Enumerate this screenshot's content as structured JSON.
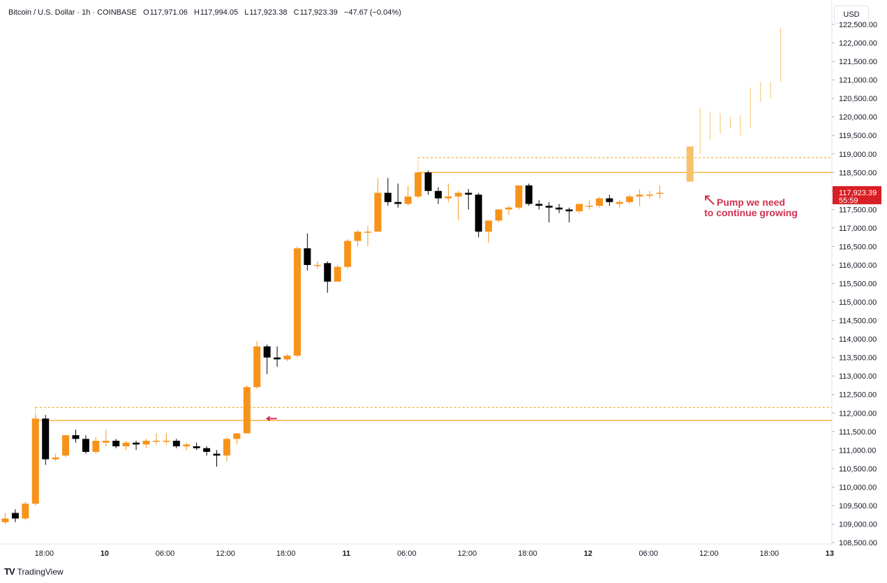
{
  "header": {
    "symbol": "Bitcoin / U.S. Dollar · 1h · COINBASE",
    "o_label": "O",
    "o": "117,971.06",
    "h_label": "H",
    "h": "117,994.05",
    "l_label": "L",
    "l": "117,923.38",
    "c_label": "C",
    "c": "117,923.39",
    "change": "−47.67 (−0.04%)"
  },
  "currency": "USD",
  "footer": {
    "logo": "TV",
    "brand": "TradingView"
  },
  "colors": {
    "up": "#f7931a",
    "down": "#000000",
    "projection": "#f5c26b",
    "level": "#f5a623",
    "annotation": "#d0314f",
    "price_tag": "#d91f26"
  },
  "chart_data": {
    "type": "candlestick",
    "timeframe": "1h",
    "ylim": [
      108500,
      122500
    ],
    "y_ticks": [
      108500,
      109000,
      109500,
      110000,
      110500,
      111000,
      111500,
      112000,
      112500,
      113000,
      113500,
      114000,
      114500,
      115000,
      115500,
      116000,
      116500,
      117000,
      117500,
      118000,
      118500,
      119000,
      119500,
      120000,
      120500,
      121000,
      121500,
      122000,
      122500
    ],
    "x_ticks": [
      {
        "label": "18:00",
        "i": 2,
        "bold": false
      },
      {
        "label": "10",
        "i": 8,
        "bold": true
      },
      {
        "label": "06:00",
        "i": 14,
        "bold": false
      },
      {
        "label": "12:00",
        "i": 20,
        "bold": false
      },
      {
        "label": "18:00",
        "i": 26,
        "bold": false
      },
      {
        "label": "11",
        "i": 32,
        "bold": true
      },
      {
        "label": "06:00",
        "i": 38,
        "bold": false
      },
      {
        "label": "12:00",
        "i": 44,
        "bold": false
      },
      {
        "label": "18:00",
        "i": 50,
        "bold": false
      },
      {
        "label": "12",
        "i": 56,
        "bold": true
      },
      {
        "label": "06:00",
        "i": 62,
        "bold": false
      },
      {
        "label": "12:00",
        "i": 68,
        "bold": false
      },
      {
        "label": "18:00",
        "i": 74,
        "bold": false
      },
      {
        "label": "13",
        "i": 80,
        "bold": true
      }
    ],
    "candles": [
      {
        "o": 109050,
        "h": 109300,
        "l": 109000,
        "c": 109150
      },
      {
        "o": 109300,
        "h": 109400,
        "l": 109050,
        "c": 109150
      },
      {
        "o": 109150,
        "h": 109600,
        "l": 109100,
        "c": 109550
      },
      {
        "o": 109550,
        "h": 111950,
        "l": 109500,
        "c": 111850
      },
      {
        "o": 111850,
        "h": 111950,
        "l": 110600,
        "c": 110750
      },
      {
        "o": 110750,
        "h": 110900,
        "l": 110700,
        "c": 110800
      },
      {
        "o": 110850,
        "h": 111400,
        "l": 110800,
        "c": 111400
      },
      {
        "o": 111400,
        "h": 111550,
        "l": 111200,
        "c": 111300
      },
      {
        "o": 111300,
        "h": 111400,
        "l": 110900,
        "c": 110950
      },
      {
        "o": 110950,
        "h": 111350,
        "l": 110900,
        "c": 111250
      },
      {
        "o": 111200,
        "h": 111550,
        "l": 111100,
        "c": 111250
      },
      {
        "o": 111250,
        "h": 111300,
        "l": 111050,
        "c": 111100
      },
      {
        "o": 111100,
        "h": 111250,
        "l": 111000,
        "c": 111200
      },
      {
        "o": 111200,
        "h": 111250,
        "l": 111000,
        "c": 111150
      },
      {
        "o": 111150,
        "h": 111300,
        "l": 111050,
        "c": 111250
      },
      {
        "o": 111250,
        "h": 111450,
        "l": 111150,
        "c": 111250
      },
      {
        "o": 111250,
        "h": 111450,
        "l": 111150,
        "c": 111250
      },
      {
        "o": 111250,
        "h": 111300,
        "l": 111050,
        "c": 111100
      },
      {
        "o": 111100,
        "h": 111200,
        "l": 111000,
        "c": 111150
      },
      {
        "o": 111100,
        "h": 111200,
        "l": 111000,
        "c": 111050
      },
      {
        "o": 111050,
        "h": 111100,
        "l": 110850,
        "c": 110950
      },
      {
        "o": 110900,
        "h": 111000,
        "l": 110550,
        "c": 110850
      },
      {
        "o": 110850,
        "h": 111350,
        "l": 110700,
        "c": 111300
      },
      {
        "o": 111300,
        "h": 111450,
        "l": 111150,
        "c": 111450
      },
      {
        "o": 111450,
        "h": 112750,
        "l": 111450,
        "c": 112700
      },
      {
        "o": 112700,
        "h": 113950,
        "l": 112650,
        "c": 113800
      },
      {
        "o": 113800,
        "h": 113850,
        "l": 113050,
        "c": 113500
      },
      {
        "o": 113500,
        "h": 113800,
        "l": 113250,
        "c": 113450
      },
      {
        "o": 113450,
        "h": 113600,
        "l": 113400,
        "c": 113550
      },
      {
        "o": 113550,
        "h": 116500,
        "l": 113500,
        "c": 116450
      },
      {
        "o": 116450,
        "h": 116850,
        "l": 115850,
        "c": 116000
      },
      {
        "o": 116000,
        "h": 116100,
        "l": 115900,
        "c": 116000
      },
      {
        "o": 116050,
        "h": 116100,
        "l": 115250,
        "c": 115550
      },
      {
        "o": 115550,
        "h": 116000,
        "l": 115550,
        "c": 115950
      },
      {
        "o": 115950,
        "h": 116700,
        "l": 115900,
        "c": 116650
      },
      {
        "o": 116650,
        "h": 116950,
        "l": 116500,
        "c": 116900
      },
      {
        "o": 116900,
        "h": 117050,
        "l": 116500,
        "c": 116900
      },
      {
        "o": 116900,
        "h": 118350,
        "l": 116900,
        "c": 117950
      },
      {
        "o": 117950,
        "h": 118350,
        "l": 117600,
        "c": 117700
      },
      {
        "o": 117700,
        "h": 118200,
        "l": 117550,
        "c": 117650
      },
      {
        "o": 117650,
        "h": 118150,
        "l": 117600,
        "c": 117850
      },
      {
        "o": 117850,
        "h": 118500,
        "l": 117800,
        "c": 118500
      },
      {
        "o": 118500,
        "h": 118550,
        "l": 117900,
        "c": 118000
      },
      {
        "o": 118000,
        "h": 118100,
        "l": 117650,
        "c": 117800
      },
      {
        "o": 117800,
        "h": 118200,
        "l": 117700,
        "c": 117850
      },
      {
        "o": 117850,
        "h": 118000,
        "l": 117200,
        "c": 117950
      },
      {
        "o": 117950,
        "h": 118050,
        "l": 117500,
        "c": 117900
      },
      {
        "o": 117900,
        "h": 117950,
        "l": 116750,
        "c": 116900
      },
      {
        "o": 116900,
        "h": 117200,
        "l": 116600,
        "c": 117200
      },
      {
        "o": 117200,
        "h": 117500,
        "l": 117150,
        "c": 117500
      },
      {
        "o": 117500,
        "h": 117600,
        "l": 117350,
        "c": 117550
      },
      {
        "o": 117550,
        "h": 118150,
        "l": 117500,
        "c": 118150
      },
      {
        "o": 118150,
        "h": 118200,
        "l": 117600,
        "c": 117650
      },
      {
        "o": 117650,
        "h": 117750,
        "l": 117500,
        "c": 117600
      },
      {
        "o": 117600,
        "h": 117700,
        "l": 117150,
        "c": 117550
      },
      {
        "o": 117550,
        "h": 117650,
        "l": 117400,
        "c": 117500
      },
      {
        "o": 117500,
        "h": 117550,
        "l": 117150,
        "c": 117450
      },
      {
        "o": 117450,
        "h": 117650,
        "l": 117400,
        "c": 117650
      },
      {
        "o": 117600,
        "h": 117750,
        "l": 117500,
        "c": 117600
      },
      {
        "o": 117600,
        "h": 117850,
        "l": 117550,
        "c": 117800
      },
      {
        "o": 117800,
        "h": 117900,
        "l": 117600,
        "c": 117700
      },
      {
        "o": 117650,
        "h": 117750,
        "l": 117550,
        "c": 117700
      },
      {
        "o": 117700,
        "h": 117900,
        "l": 117650,
        "c": 117850
      },
      {
        "o": 117850,
        "h": 118050,
        "l": 117600,
        "c": 117900
      },
      {
        "o": 117900,
        "h": 118000,
        "l": 117800,
        "c": 117900
      },
      {
        "o": 117950,
        "h": 118150,
        "l": 117800,
        "c": 117950
      }
    ],
    "projection_index_start": 68,
    "projection": [
      {
        "o": 118250,
        "h": 119200,
        "l": 118250,
        "c": 119200
      },
      {
        "o": 119000,
        "h": 120250,
        "l": 119000,
        "c": 120000
      },
      {
        "o": 119400,
        "h": 120150,
        "l": 119400,
        "c": 120050
      },
      {
        "o": 119550,
        "h": 120100,
        "l": 119550,
        "c": 119900
      },
      {
        "o": 119700,
        "h": 120000,
        "l": 119700,
        "c": 119850
      },
      {
        "o": 119500,
        "h": 120050,
        "l": 119500,
        "c": 119800
      },
      {
        "o": 119700,
        "h": 120800,
        "l": 119700,
        "c": 120500
      },
      {
        "o": 120400,
        "h": 120950,
        "l": 120400,
        "c": 120700
      },
      {
        "o": 120500,
        "h": 120950,
        "l": 120500,
        "c": 120750
      },
      {
        "o": 120950,
        "h": 122400,
        "l": 120950,
        "c": 122000
      }
    ],
    "levels": [
      {
        "price": 118900,
        "style": "dashed",
        "from_index": 41
      },
      {
        "price": 118500,
        "style": "solid",
        "from_index": 41
      },
      {
        "price": 112150,
        "style": "dashed",
        "from_index": 3
      },
      {
        "price": 111800,
        "style": "solid",
        "from_index": 3
      }
    ],
    "last_price": "117,923.39",
    "last_price_value": 117923.39,
    "countdown": "55:59",
    "annotation": {
      "line1": "Pump we need",
      "line2": "to continue growing",
      "anchor_index": 69,
      "anchor_price": 118200
    }
  }
}
